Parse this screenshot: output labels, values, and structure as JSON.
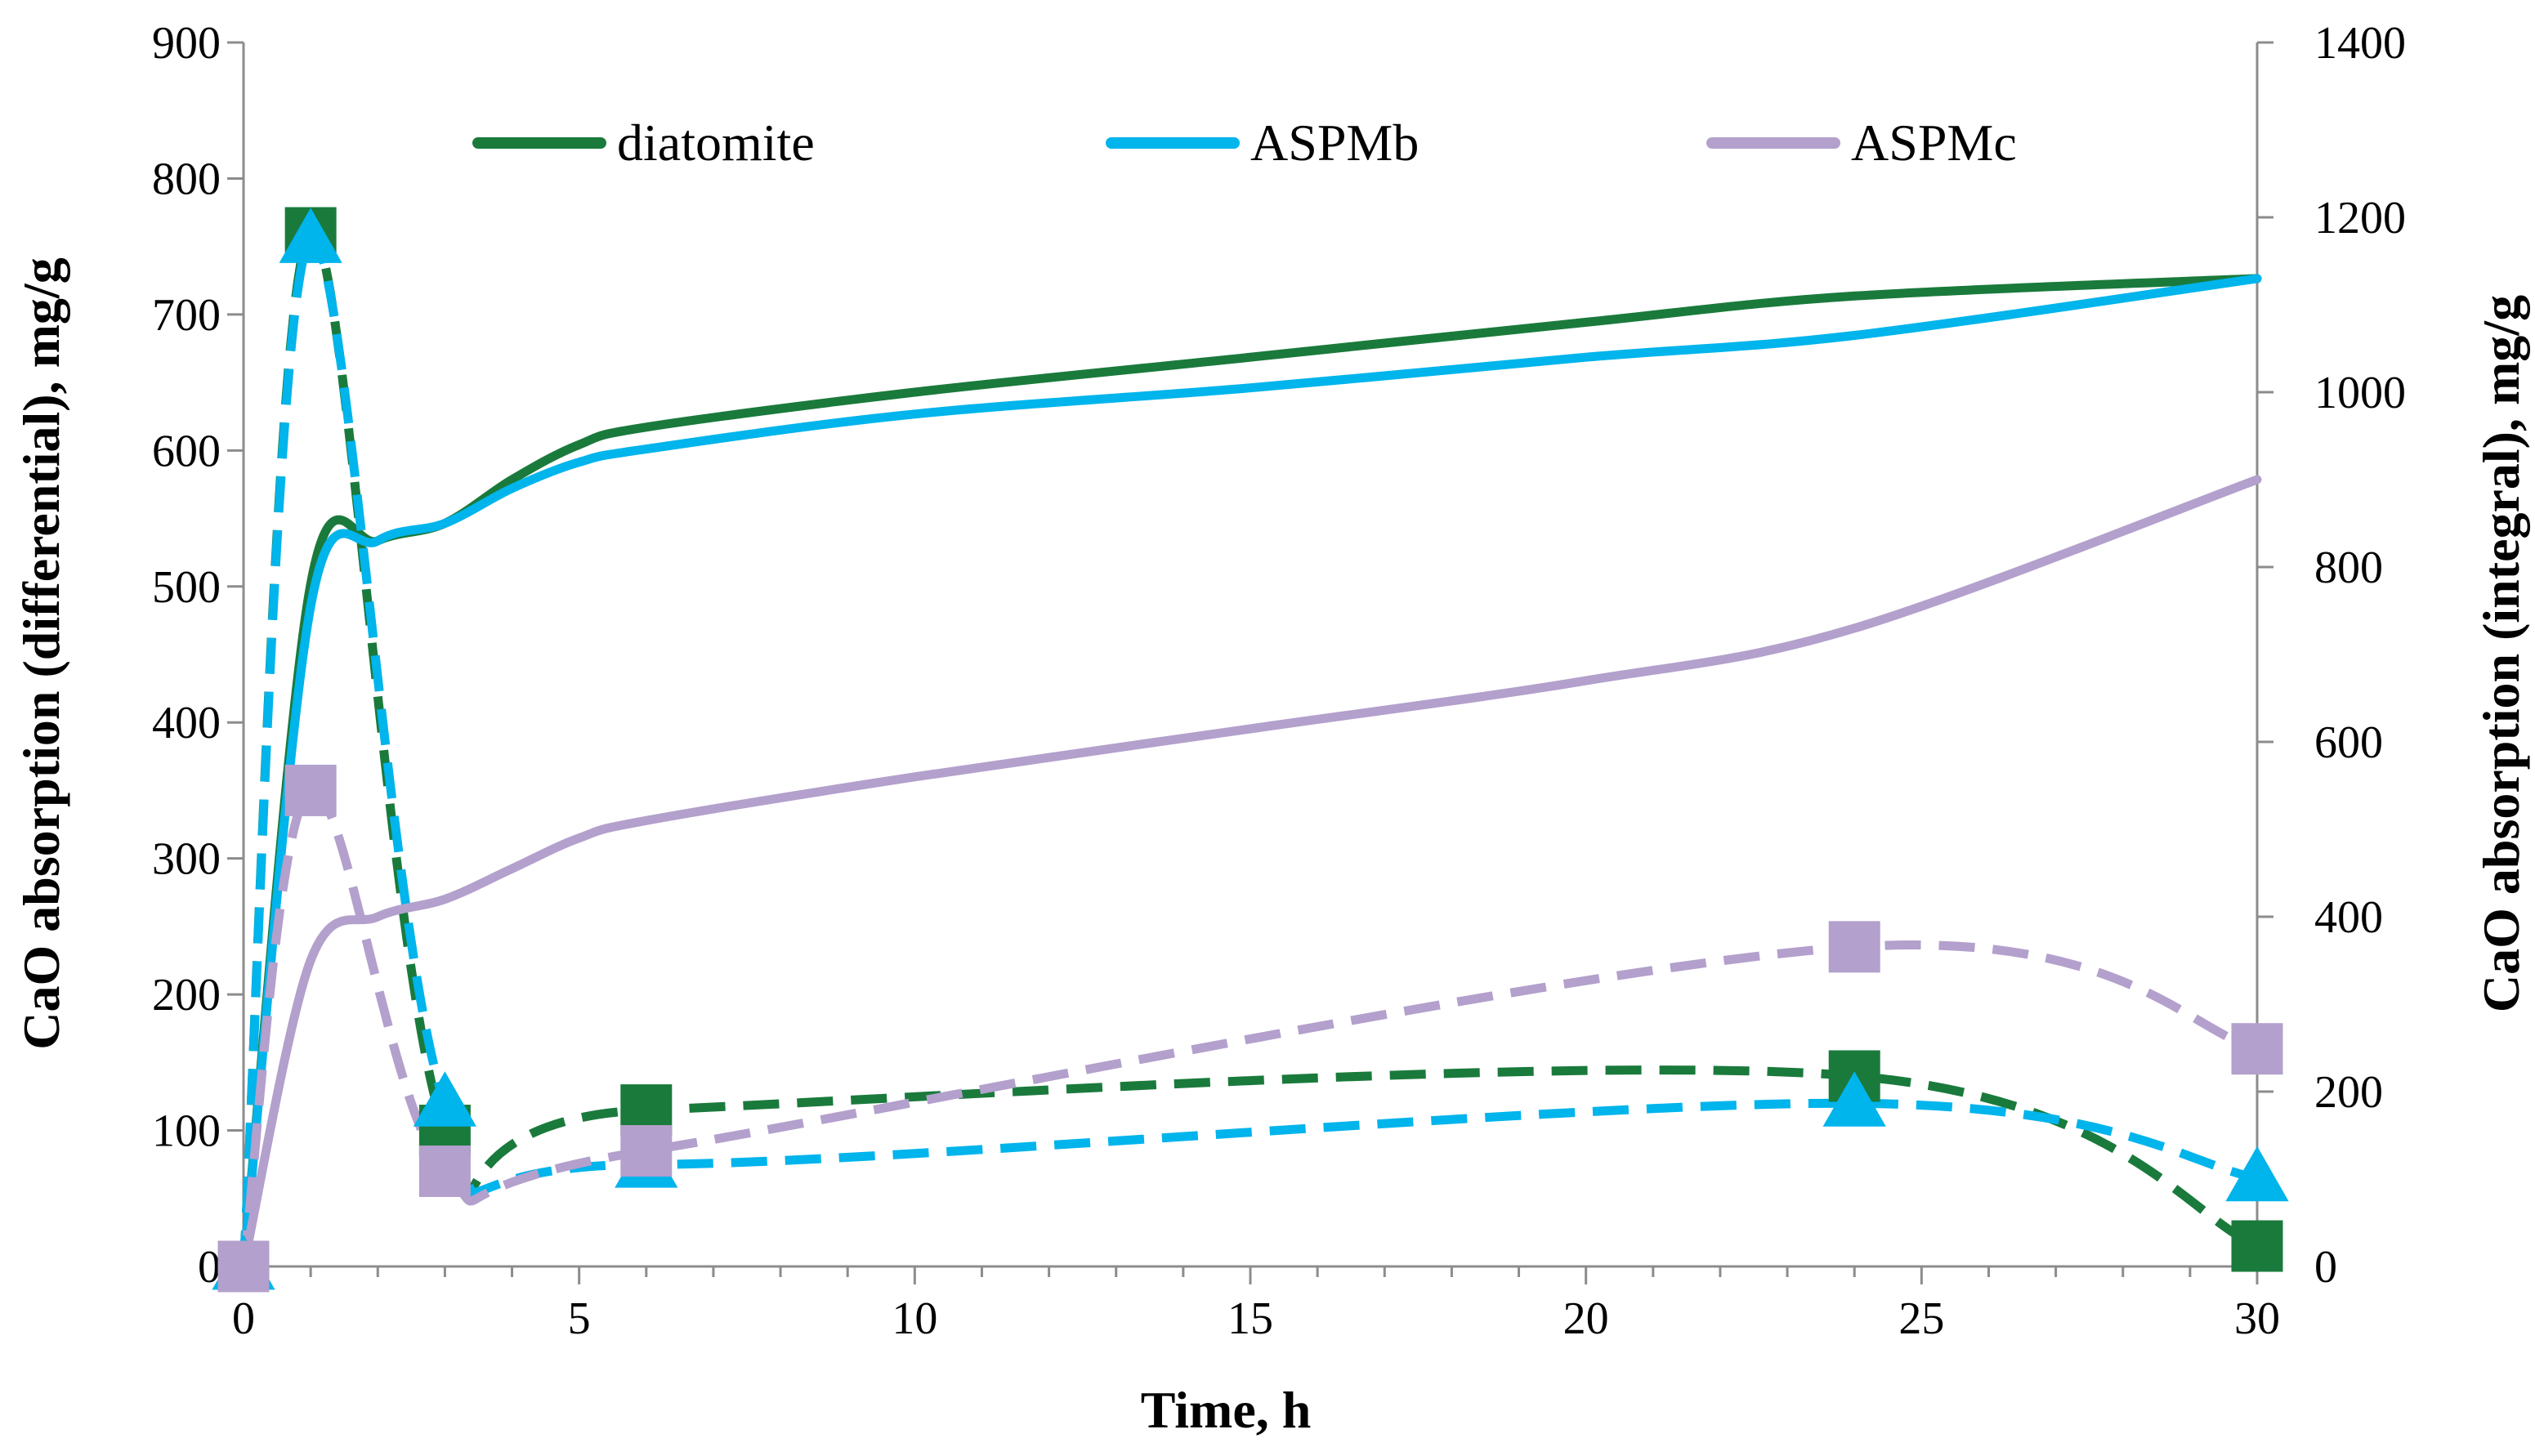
{
  "chart_data": {
    "type": "line",
    "title": "",
    "xlabel": "Time, h",
    "ylabel_left": "CaO absorption (differential), mg/g",
    "ylabel_right": "CaO absorption (integral), mg/g",
    "xlim": [
      0,
      30
    ],
    "ylim_left": [
      0,
      900
    ],
    "ylim_right": [
      0,
      1400
    ],
    "x_ticks": [
      0,
      5,
      10,
      15,
      20,
      25,
      30
    ],
    "y_left_ticks": [
      0,
      100,
      200,
      300,
      400,
      500,
      600,
      700,
      800,
      900
    ],
    "y_right_ticks": [
      0,
      200,
      400,
      600,
      800,
      1000,
      1200,
      1400
    ],
    "grid": false,
    "legend_position": "top",
    "series": [
      {
        "name": "diatomite",
        "color": "#1a7a3c",
        "differential": {
          "axis": "left",
          "marker": "square",
          "x": [
            0,
            1,
            3,
            6,
            24,
            30
          ],
          "y": [
            0,
            760,
            100,
            115,
            140,
            15
          ]
        },
        "integral": {
          "axis": "right",
          "x": [
            0,
            1,
            2,
            3,
            4,
            5,
            6,
            10,
            15,
            20,
            24,
            30
          ],
          "y": [
            0,
            780,
            830,
            850,
            900,
            940,
            960,
            1000,
            1040,
            1080,
            1110,
            1130
          ]
        }
      },
      {
        "name": "ASPMb",
        "color": "#00b4ec",
        "differential": {
          "axis": "left",
          "marker": "triangle",
          "x": [
            0,
            1,
            3,
            6,
            24,
            30
          ],
          "y": [
            0,
            755,
            120,
            75,
            120,
            65
          ]
        },
        "integral": {
          "axis": "right",
          "x": [
            0,
            1,
            2,
            3,
            4,
            5,
            6,
            10,
            15,
            20,
            24,
            30
          ],
          "y": [
            0,
            755,
            830,
            850,
            890,
            920,
            935,
            975,
            1005,
            1040,
            1065,
            1130
          ]
        }
      },
      {
        "name": "ASPMc",
        "color": "#b3a0cc",
        "differential": {
          "axis": "left",
          "marker": "square",
          "x": [
            0,
            1,
            3,
            6,
            24,
            30
          ],
          "y": [
            0,
            350,
            70,
            85,
            235,
            160
          ]
        },
        "integral": {
          "axis": "right",
          "x": [
            0,
            1,
            2,
            3,
            4,
            5,
            6,
            10,
            15,
            20,
            24,
            30
          ],
          "y": [
            0,
            350,
            400,
            420,
            455,
            490,
            510,
            560,
            615,
            670,
            730,
            900
          ]
        }
      }
    ]
  }
}
